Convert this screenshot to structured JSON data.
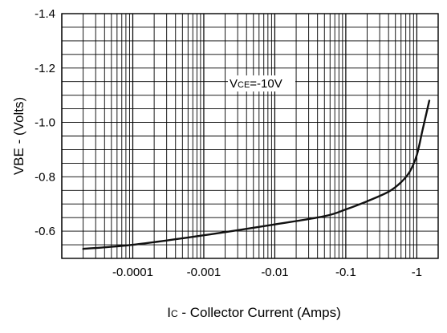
{
  "chart_data": {
    "type": "line",
    "title": "",
    "xlabel": "Ic - Collector Current (Amps)",
    "xlabel_main": "I",
    "xlabel_sub": "C",
    "xlabel_rest": " - Collector Current (Amps)",
    "ylabel": "VBE - (Volts)",
    "x_scale": "log",
    "xlim": [
      1e-05,
      2
    ],
    "ylim": [
      -0.5,
      -1.4
    ],
    "x_ticks": [
      0.0001,
      0.001,
      0.01,
      0.1,
      1
    ],
    "x_tick_labels": [
      "-0.0001",
      "-0.001",
      "-0.01",
      "-0.1",
      "-1"
    ],
    "y_ticks": [
      -0.6,
      -0.8,
      -1.0,
      -1.2,
      -1.4
    ],
    "y_tick_labels": [
      "-0.6",
      "-0.8",
      "-1.0",
      "-1.2",
      "-1.4"
    ],
    "grid": true,
    "annotation": {
      "label": "VCE=-10V",
      "main": "V",
      "sub": "CE",
      "rest": "=-10V"
    },
    "series": [
      {
        "x": [
          2e-05,
          0.0001,
          0.001,
          0.01,
          0.05,
          0.1,
          0.2,
          0.4,
          0.6,
          0.8,
          1.0,
          1.2,
          1.5
        ],
        "y": [
          -0.535,
          -0.55,
          -0.585,
          -0.625,
          -0.655,
          -0.68,
          -0.71,
          -0.745,
          -0.78,
          -0.82,
          -0.88,
          -0.97,
          -1.08
        ]
      }
    ],
    "colors": {
      "line": "#111111",
      "grid": "#000000",
      "background": "#ffffff"
    }
  }
}
